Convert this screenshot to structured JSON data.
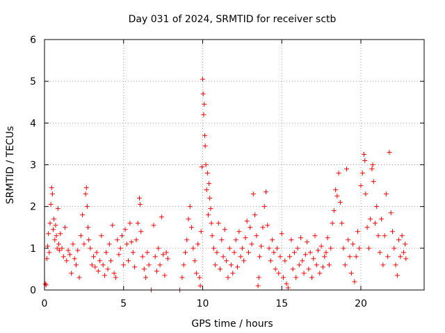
{
  "chart_data": {
    "type": "scatter",
    "title": "Day 031 of 2024, SRMTID for receiver sctb",
    "xlabel": "GPS time / hours",
    "ylabel": "SRMTID / TECUs",
    "xlim": [
      0,
      24
    ],
    "ylim": [
      0,
      6
    ],
    "xticks": [
      0,
      5,
      10,
      15,
      20
    ],
    "yticks": [
      0,
      1,
      2,
      3,
      4,
      5,
      6
    ],
    "grid": true,
    "marker": "+",
    "colors": {
      "series": "#ff0000",
      "grid": "#a0a0a0",
      "axis": "#000000"
    },
    "series": [
      {
        "name": "SRMTID",
        "points": [
          [
            0.05,
            0.15
          ],
          [
            0.1,
            0.12
          ],
          [
            0.15,
            0.75
          ],
          [
            0.2,
            1.05
          ],
          [
            0.25,
            1.35
          ],
          [
            0.3,
            0.9
          ],
          [
            0.35,
            1.6
          ],
          [
            0.4,
            2.05
          ],
          [
            0.45,
            2.45
          ],
          [
            0.5,
            2.3
          ],
          [
            0.55,
            1.45
          ],
          [
            0.6,
            1.7
          ],
          [
            0.65,
            1.2
          ],
          [
            0.7,
            1.55
          ],
          [
            0.75,
            1.3
          ],
          [
            0.8,
            1.0
          ],
          [
            0.85,
            1.95
          ],
          [
            0.9,
            1.1
          ],
          [
            0.95,
            0.95
          ],
          [
            1.0,
            1.35
          ],
          [
            1.1,
            1.0
          ],
          [
            1.2,
            0.8
          ],
          [
            1.3,
            1.5
          ],
          [
            1.4,
            0.7
          ],
          [
            1.5,
            0.95
          ],
          [
            1.6,
            0.85
          ],
          [
            1.7,
            0.4
          ],
          [
            1.8,
            1.1
          ],
          [
            1.9,
            0.75
          ],
          [
            2.0,
            0.6
          ],
          [
            2.1,
            0.95
          ],
          [
            2.2,
            0.3
          ],
          [
            2.3,
            1.3
          ],
          [
            2.4,
            1.8
          ],
          [
            2.5,
            1.1
          ],
          [
            2.6,
            2.3
          ],
          [
            2.65,
            2.45
          ],
          [
            2.7,
            2.0
          ],
          [
            2.75,
            1.5
          ],
          [
            2.8,
            1.2
          ],
          [
            2.9,
            1.0
          ],
          [
            3.0,
            0.6
          ],
          [
            3.1,
            0.8
          ],
          [
            3.2,
            0.55
          ],
          [
            3.3,
            0.9
          ],
          [
            3.4,
            0.45
          ],
          [
            3.5,
            0.7
          ],
          [
            3.6,
            1.3
          ],
          [
            3.7,
            0.6
          ],
          [
            3.8,
            0.35
          ],
          [
            3.9,
            0.9
          ],
          [
            4.0,
            0.5
          ],
          [
            4.1,
            1.1
          ],
          [
            4.2,
            0.7
          ],
          [
            4.3,
            1.55
          ],
          [
            4.4,
            0.4
          ],
          [
            4.5,
            0.3
          ],
          [
            4.6,
            1.2
          ],
          [
            4.7,
            0.85
          ],
          [
            4.8,
            1.0
          ],
          [
            4.9,
            1.3
          ],
          [
            5.0,
            0.6
          ],
          [
            5.1,
            1.45
          ],
          [
            5.2,
            1.1
          ],
          [
            5.3,
            0.7
          ],
          [
            5.4,
            1.6
          ],
          [
            5.5,
            1.15
          ],
          [
            5.6,
            0.9
          ],
          [
            5.7,
            0.55
          ],
          [
            5.8,
            1.2
          ],
          [
            5.9,
            1.6
          ],
          [
            6.0,
            2.2
          ],
          [
            6.05,
            2.05
          ],
          [
            6.1,
            1.4
          ],
          [
            6.2,
            0.8
          ],
          [
            6.3,
            0.5
          ],
          [
            6.4,
            0.3
          ],
          [
            6.5,
            0.9
          ],
          [
            6.6,
            0.6
          ],
          [
            6.75,
            0.0
          ],
          [
            6.9,
            1.55
          ],
          [
            7.0,
            0.8
          ],
          [
            7.1,
            0.45
          ],
          [
            7.2,
            1.0
          ],
          [
            7.3,
            0.6
          ],
          [
            7.4,
            1.75
          ],
          [
            7.5,
            0.85
          ],
          [
            7.6,
            0.35
          ],
          [
            7.7,
            0.9
          ],
          [
            7.8,
            0.75
          ],
          [
            8.55,
            0.0
          ],
          [
            8.7,
            0.3
          ],
          [
            8.8,
            0.6
          ],
          [
            8.9,
            0.9
          ],
          [
            9.0,
            1.2
          ],
          [
            9.1,
            1.7
          ],
          [
            9.2,
            2.0
          ],
          [
            9.3,
            1.5
          ],
          [
            9.4,
            1.0
          ],
          [
            9.5,
            0.7
          ],
          [
            9.6,
            0.4
          ],
          [
            9.7,
            1.1
          ],
          [
            9.8,
            0.3
          ],
          [
            9.85,
            0.1
          ],
          [
            9.9,
            1.4
          ],
          [
            9.95,
            2.95
          ],
          [
            10.0,
            5.05
          ],
          [
            10.03,
            4.7
          ],
          [
            10.06,
            4.2
          ],
          [
            10.1,
            4.45
          ],
          [
            10.13,
            3.7
          ],
          [
            10.16,
            3.45
          ],
          [
            10.2,
            3.0
          ],
          [
            10.25,
            2.4
          ],
          [
            10.3,
            2.8
          ],
          [
            10.35,
            1.8
          ],
          [
            10.4,
            2.55
          ],
          [
            10.45,
            2.2
          ],
          [
            10.5,
            1.95
          ],
          [
            10.55,
            1.6
          ],
          [
            10.6,
            1.3
          ],
          [
            10.7,
            1.0
          ],
          [
            10.8,
            0.6
          ],
          [
            10.9,
            0.9
          ],
          [
            11.0,
            1.6
          ],
          [
            11.1,
            0.5
          ],
          [
            11.2,
            1.2
          ],
          [
            11.3,
            0.8
          ],
          [
            11.4,
            1.45
          ],
          [
            11.5,
            0.7
          ],
          [
            11.6,
            0.3
          ],
          [
            11.7,
            1.0
          ],
          [
            11.8,
            0.6
          ],
          [
            11.9,
            0.4
          ],
          [
            12.0,
            0.9
          ],
          [
            12.1,
            1.2
          ],
          [
            12.2,
            0.55
          ],
          [
            12.3,
            1.4
          ],
          [
            12.4,
            0.8
          ],
          [
            12.5,
            1.0
          ],
          [
            12.6,
            0.7
          ],
          [
            12.7,
            1.25
          ],
          [
            12.8,
            1.65
          ],
          [
            12.9,
            0.9
          ],
          [
            13.0,
            1.5
          ],
          [
            13.1,
            1.1
          ],
          [
            13.2,
            2.3
          ],
          [
            13.3,
            1.8
          ],
          [
            13.4,
            1.3
          ],
          [
            13.5,
            0.1
          ],
          [
            13.55,
            0.3
          ],
          [
            13.6,
            0.8
          ],
          [
            13.7,
            1.05
          ],
          [
            13.8,
            1.5
          ],
          [
            13.9,
            2.0
          ],
          [
            14.0,
            2.35
          ],
          [
            14.1,
            1.55
          ],
          [
            14.2,
            1.0
          ],
          [
            14.3,
            0.7
          ],
          [
            14.4,
            1.2
          ],
          [
            14.5,
            0.9
          ],
          [
            14.6,
            0.5
          ],
          [
            14.7,
            1.0
          ],
          [
            14.8,
            0.4
          ],
          [
            14.9,
            0.8
          ],
          [
            15.0,
            1.35
          ],
          [
            15.1,
            0.3
          ],
          [
            15.2,
            0.7
          ],
          [
            15.3,
            0.15
          ],
          [
            15.4,
            0.05
          ],
          [
            15.5,
            0.8
          ],
          [
            15.6,
            1.2
          ],
          [
            15.7,
            0.5
          ],
          [
            15.8,
            0.9
          ],
          [
            15.9,
            0.3
          ],
          [
            16.0,
            1.0
          ],
          [
            16.1,
            0.6
          ],
          [
            16.2,
            1.25
          ],
          [
            16.3,
            0.7
          ],
          [
            16.4,
            0.4
          ],
          [
            16.5,
            0.85
          ],
          [
            16.6,
            1.15
          ],
          [
            16.7,
            0.5
          ],
          [
            16.8,
            0.9
          ],
          [
            16.9,
            0.3
          ],
          [
            17.0,
            0.75
          ],
          [
            17.1,
            1.3
          ],
          [
            17.2,
            0.6
          ],
          [
            17.3,
            0.95
          ],
          [
            17.4,
            0.4
          ],
          [
            17.5,
            1.05
          ],
          [
            17.6,
            0.55
          ],
          [
            17.7,
            0.8
          ],
          [
            17.8,
            0.9
          ],
          [
            17.9,
            1.25
          ],
          [
            18.0,
            0.6
          ],
          [
            18.1,
            1.0
          ],
          [
            18.2,
            1.6
          ],
          [
            18.3,
            1.9
          ],
          [
            18.4,
            2.4
          ],
          [
            18.5,
            2.25
          ],
          [
            18.6,
            2.8
          ],
          [
            18.7,
            2.1
          ],
          [
            18.8,
            1.6
          ],
          [
            18.9,
            1.0
          ],
          [
            19.0,
            0.6
          ],
          [
            19.1,
            2.9
          ],
          [
            19.2,
            1.2
          ],
          [
            19.3,
            0.8
          ],
          [
            19.4,
            0.4
          ],
          [
            19.5,
            1.1
          ],
          [
            19.6,
            0.2
          ],
          [
            19.7,
            0.8
          ],
          [
            19.8,
            1.4
          ],
          [
            19.9,
            1.0
          ],
          [
            20.0,
            2.5
          ],
          [
            20.1,
            2.8
          ],
          [
            20.2,
            3.25
          ],
          [
            20.25,
            3.1
          ],
          [
            20.3,
            2.3
          ],
          [
            20.4,
            1.5
          ],
          [
            20.5,
            1.0
          ],
          [
            20.6,
            1.7
          ],
          [
            20.7,
            2.9
          ],
          [
            20.75,
            3.0
          ],
          [
            20.8,
            2.6
          ],
          [
            20.9,
            1.6
          ],
          [
            21.0,
            2.0
          ],
          [
            21.1,
            1.3
          ],
          [
            21.2,
            0.9
          ],
          [
            21.3,
            1.7
          ],
          [
            21.4,
            0.6
          ],
          [
            21.5,
            1.3
          ],
          [
            21.6,
            2.3
          ],
          [
            21.7,
            0.8
          ],
          [
            21.8,
            3.3
          ],
          [
            21.9,
            1.85
          ],
          [
            22.0,
            1.4
          ],
          [
            22.1,
            1.0
          ],
          [
            22.2,
            0.6
          ],
          [
            22.3,
            0.35
          ],
          [
            22.4,
            1.2
          ],
          [
            22.5,
            0.8
          ],
          [
            22.6,
            1.3
          ],
          [
            22.7,
            0.9
          ],
          [
            22.8,
            1.1
          ],
          [
            22.85,
            0.75
          ]
        ]
      }
    ]
  }
}
